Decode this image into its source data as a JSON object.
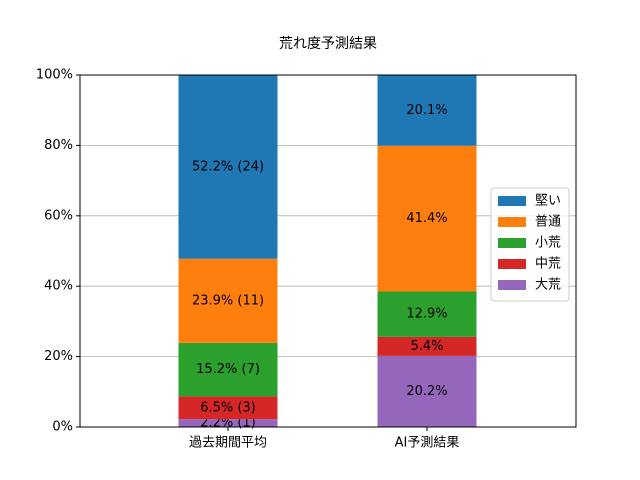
{
  "chart_data": {
    "type": "stacked_bar",
    "title": "荒れ度予測結果",
    "categories": [
      "過去期間平均",
      "AI予測結果"
    ],
    "series": [
      {
        "name": "堅い",
        "color": "#1f77b4",
        "values": [
          52.2,
          20.1
        ],
        "value_labels": [
          "52.2% (24)",
          "20.1%"
        ]
      },
      {
        "name": "普通",
        "color": "#ff7f0e",
        "values": [
          23.9,
          41.4
        ],
        "value_labels": [
          "23.9% (11)",
          "41.4%"
        ]
      },
      {
        "name": "小荒",
        "color": "#2ca02c",
        "values": [
          15.2,
          12.9
        ],
        "value_labels": [
          "15.2% (7)",
          "12.9%"
        ]
      },
      {
        "name": "中荒",
        "color": "#d62728",
        "values": [
          6.5,
          5.4
        ],
        "value_labels": [
          "6.5% (3)",
          "5.4%"
        ]
      },
      {
        "name": "大荒",
        "color": "#9467bd",
        "values": [
          2.2,
          20.2
        ],
        "value_labels": [
          "2.2% (1)",
          "20.2%"
        ]
      }
    ],
    "ylim": [
      0,
      100
    ],
    "yticks": [
      {
        "value": 0,
        "label": "0%"
      },
      {
        "value": 20,
        "label": "20%"
      },
      {
        "value": 40,
        "label": "40%"
      },
      {
        "value": 60,
        "label": "60%"
      },
      {
        "value": 80,
        "label": "80%"
      },
      {
        "value": 100,
        "label": "100%"
      }
    ],
    "grid": true,
    "legend": "center right"
  }
}
